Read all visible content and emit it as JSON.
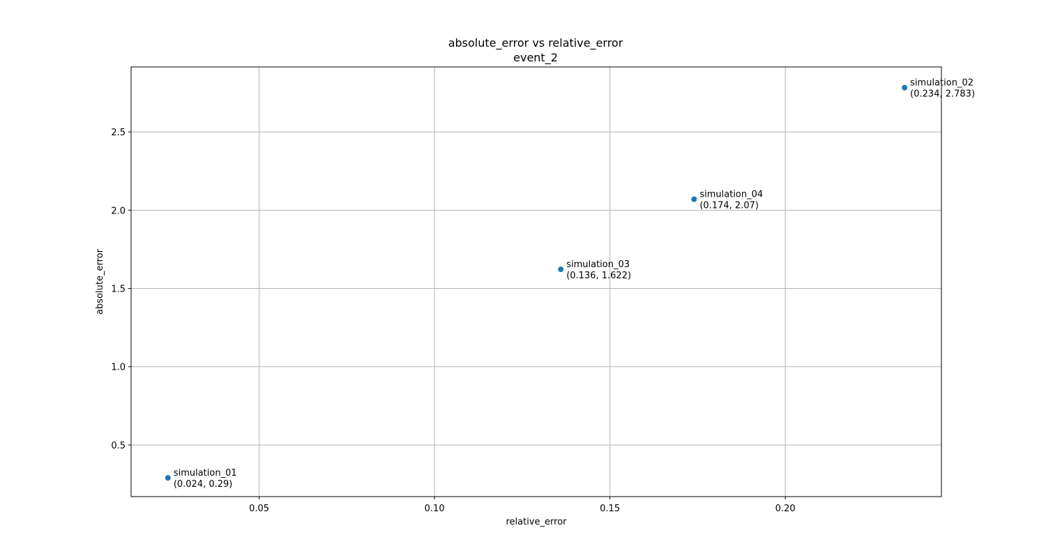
{
  "chart_data": {
    "type": "scatter",
    "title": "absolute_error vs relative_error",
    "subtitle": "event_2",
    "xlabel": "relative_error",
    "ylabel": "absolute_error",
    "xlim": [
      0.0135,
      0.2445
    ],
    "ylim": [
      0.17,
      2.915
    ],
    "xticks": [
      {
        "value": 0.05,
        "label": "0.05"
      },
      {
        "value": 0.1,
        "label": "0.10"
      },
      {
        "value": 0.15,
        "label": "0.15"
      },
      {
        "value": 0.2,
        "label": "0.20"
      }
    ],
    "yticks": [
      {
        "value": 0.5,
        "label": "0.5"
      },
      {
        "value": 1.0,
        "label": "1.0"
      },
      {
        "value": 1.5,
        "label": "1.5"
      },
      {
        "value": 2.0,
        "label": "2.0"
      },
      {
        "value": 2.5,
        "label": "2.5"
      }
    ],
    "grid": true,
    "marker_color": "#1f77b4",
    "points": [
      {
        "name": "simulation_01",
        "x": 0.024,
        "y": 0.29,
        "coords_label": "(0.024, 0.29)"
      },
      {
        "name": "simulation_02",
        "x": 0.234,
        "y": 2.783,
        "coords_label": "(0.234, 2.783)"
      },
      {
        "name": "simulation_03",
        "x": 0.136,
        "y": 1.622,
        "coords_label": "(0.136, 1.622)"
      },
      {
        "name": "simulation_04",
        "x": 0.174,
        "y": 2.07,
        "coords_label": "(0.174, 2.07)"
      }
    ]
  }
}
